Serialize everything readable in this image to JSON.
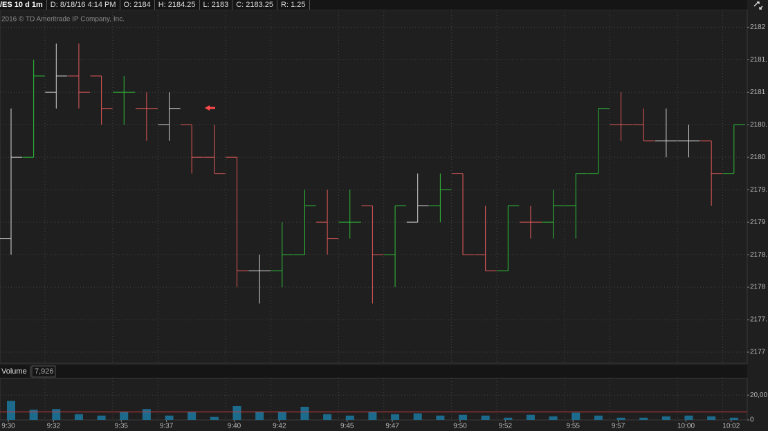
{
  "header": {
    "symbol": "/ES 10 d 1m",
    "date": "D: 8/18/16 4:14 PM",
    "open": "O: 2184",
    "high": "H: 2184.25",
    "low": "L: 2183",
    "close": "C: 2183.25",
    "range": "R: 1.25"
  },
  "copyright": "2016 © TD Ameritrade IP Company, Inc.",
  "chart_data": [
    {
      "type": "ohlc",
      "categories": [
        "9:30",
        null,
        "9:32",
        null,
        null,
        "9:35",
        null,
        "9:37",
        null,
        null,
        "9:40",
        null,
        "9:42",
        null,
        null,
        "9:45",
        null,
        "9:47",
        null,
        null,
        "9:50",
        null,
        "9:52",
        null,
        null,
        "9:55",
        null,
        "9:57",
        null,
        null,
        "10:00",
        null,
        "10:02"
      ],
      "open": [
        2178.75,
        2180,
        2181,
        2181.25,
        2181.25,
        2181,
        2180.75,
        2180.5,
        2180.5,
        2180,
        2180,
        2178.25,
        2178.25,
        2178.5,
        2179,
        2179,
        2179.25,
        2178.5,
        2179,
        2179.25,
        2179.75,
        2178.5,
        2178.25,
        2179,
        2179,
        2179.25,
        2179.75,
        2180.5,
        2180.5,
        2180.25,
        2180.25,
        2180.25,
        2179.75
      ],
      "high": [
        2180.75,
        2181.5,
        2181.75,
        2181.75,
        2181.25,
        2181.25,
        2181,
        2181,
        2180.5,
        2180.5,
        2180,
        2178.5,
        2179,
        2179.5,
        2179.5,
        2179.5,
        2179.25,
        2179.25,
        2179.75,
        2179.75,
        2179.75,
        2179.25,
        2179.25,
        2179.25,
        2179.5,
        2179.75,
        2180.75,
        2181,
        2180.75,
        2180.75,
        2180.5,
        2180.25,
        2180.5
      ],
      "low": [
        2178.5,
        2180,
        2180.75,
        2180.75,
        2180.5,
        2180.5,
        2180.25,
        2180.25,
        2179.75,
        2179.75,
        2178,
        2177.75,
        2178,
        2178.5,
        2178.5,
        2178.75,
        2177.75,
        2178,
        2179,
        2179,
        2178.5,
        2178.25,
        2178.25,
        2178.75,
        2178.75,
        2178.75,
        2179.75,
        2180.25,
        2180.25,
        2180,
        2180,
        2179.25,
        2179.75
      ],
      "close": [
        2180,
        2181.25,
        2181.25,
        2181,
        2180.75,
        2181,
        2180.75,
        2180.75,
        2180,
        2179.75,
        2178.25,
        2178.25,
        2178.5,
        2179.25,
        2178.75,
        2179,
        2178.5,
        2179.25,
        2179.25,
        2179.5,
        2178.5,
        2178.25,
        2179.25,
        2179,
        2179.25,
        2179.75,
        2180.75,
        2180.5,
        2180.25,
        2180.25,
        2180.25,
        2179.75,
        2180.5
      ],
      "colors": [
        "#d8d8d8",
        "#2fc03a",
        "#d8d8d8",
        "#e85b5b",
        "#e85b5b",
        "#2fc03a",
        "#e85b5b",
        "#d8d8d8",
        "#e85b5b",
        "#e85b5b",
        "#e85b5b",
        "#d8d8d8",
        "#2fc03a",
        "#2fc03a",
        "#e85b5b",
        "#2fc03a",
        "#e85b5b",
        "#2fc03a",
        "#d8d8d8",
        "#2fc03a",
        "#e85b5b",
        "#e85b5b",
        "#2fc03a",
        "#e85b5b",
        "#2fc03a",
        "#2fc03a",
        "#2fc03a",
        "#e85b5b",
        "#e85b5b",
        "#d8d8d8",
        "#d8d8d8",
        "#e85b5b",
        "#2fc03a"
      ],
      "ylim": [
        2176.83,
        2182.27
      ],
      "yticks": [
        2182,
        {
          "value": 2181.5,
          "label": "2181."
        },
        2181,
        {
          "value": 2180.5,
          "label": "2180."
        },
        2180,
        {
          "value": 2179.5,
          "label": "2179."
        },
        2179,
        {
          "value": 2178.5,
          "label": "2178."
        },
        2178,
        {
          "value": 2177.5,
          "label": "2177."
        },
        2177
      ],
      "grid": true
    },
    {
      "type": "bar",
      "title": "Volume",
      "current": "7,926",
      "values": [
        15300,
        8200,
        8800,
        4700,
        3500,
        6500,
        8800,
        3500,
        6500,
        2400,
        11200,
        6500,
        6500,
        10600,
        4700,
        3500,
        6500,
        4700,
        5300,
        3500,
        4100,
        3500,
        1800,
        4100,
        2900,
        5900,
        3500,
        1800,
        1800,
        2900,
        3500,
        2900,
        1800
      ],
      "color": "#1d6b8c",
      "reference_line": 6500,
      "reference_color": "#d23b3b",
      "ylim": [
        0,
        33500
      ],
      "yticks": [
        {
          "value": 20000,
          "label": "20,00"
        },
        0
      ],
      "grid": true
    }
  ]
}
